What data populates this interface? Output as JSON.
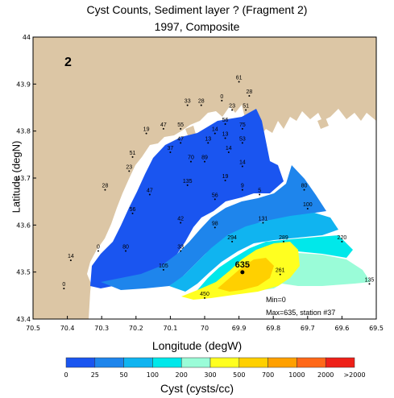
{
  "title_line1": "Cyst Counts, Sediment layer ?  (Fragment 2)",
  "title_line2": "1997, Composite",
  "panel_label": "2",
  "xlabel": "Longitude (degW)",
  "ylabel": "Latitude (degN)",
  "colorbar_label": "Cyst (cysts/cc)",
  "x_ticks": [
    "70.5",
    "70.4",
    "70.3",
    "70.2",
    "70.1",
    "70",
    "69.9",
    "69.8",
    "69.7",
    "69.6",
    "69.5"
  ],
  "y_ticks": [
    "44",
    "43.9",
    "43.8",
    "43.7",
    "43.6",
    "43.5",
    "43.4"
  ],
  "colorbar": {
    "ticks": [
      "0",
      "25",
      "50",
      "100",
      "200",
      "300",
      "500",
      "700",
      "1000",
      "2000",
      ">2000"
    ],
    "colors": [
      "#1a55f0",
      "#1e85ec",
      "#10b4f0",
      "#00e8ea",
      "#9afcd8",
      "#ffff20",
      "#ffd000",
      "#ffa000",
      "#ff6818",
      "#ee2018",
      "#c0002a"
    ]
  },
  "annotations": {
    "min": "Min=0",
    "max": "Max=635, station #37"
  },
  "colors": {
    "land": "#dcc6a5",
    "water": "#ffffff"
  },
  "stations": [
    {
      "lon": 69.9,
      "lat": 43.91,
      "value": "61"
    },
    {
      "lon": 69.87,
      "lat": 43.88,
      "value": "28"
    },
    {
      "lon": 69.95,
      "lat": 43.87,
      "value": "0"
    },
    {
      "lon": 70.05,
      "lat": 43.86,
      "value": "33"
    },
    {
      "lon": 70.01,
      "lat": 43.86,
      "value": "28"
    },
    {
      "lon": 69.92,
      "lat": 43.85,
      "value": "23"
    },
    {
      "lon": 69.88,
      "lat": 43.85,
      "value": "51"
    },
    {
      "lon": 69.94,
      "lat": 43.82,
      "value": "56"
    },
    {
      "lon": 69.89,
      "lat": 43.81,
      "value": "75"
    },
    {
      "lon": 70.07,
      "lat": 43.81,
      "value": "55"
    },
    {
      "lon": 70.12,
      "lat": 43.81,
      "value": "47"
    },
    {
      "lon": 70.17,
      "lat": 43.8,
      "value": "19"
    },
    {
      "lon": 69.97,
      "lat": 43.8,
      "value": "14"
    },
    {
      "lon": 69.94,
      "lat": 43.79,
      "value": "13"
    },
    {
      "lon": 70.07,
      "lat": 43.78,
      "value": "47"
    },
    {
      "lon": 69.99,
      "lat": 43.78,
      "value": "13"
    },
    {
      "lon": 69.89,
      "lat": 43.78,
      "value": "53"
    },
    {
      "lon": 70.1,
      "lat": 43.76,
      "value": "37"
    },
    {
      "lon": 69.93,
      "lat": 43.76,
      "value": "14"
    },
    {
      "lon": 70.21,
      "lat": 43.75,
      "value": "51"
    },
    {
      "lon": 70.04,
      "lat": 43.74,
      "value": "70"
    },
    {
      "lon": 70.0,
      "lat": 43.74,
      "value": "89"
    },
    {
      "lon": 69.89,
      "lat": 43.73,
      "value": "14"
    },
    {
      "lon": 70.22,
      "lat": 43.72,
      "value": "23"
    },
    {
      "lon": 69.94,
      "lat": 43.7,
      "value": "19"
    },
    {
      "lon": 70.05,
      "lat": 43.69,
      "value": "135"
    },
    {
      "lon": 70.29,
      "lat": 43.68,
      "value": "28"
    },
    {
      "lon": 69.89,
      "lat": 43.68,
      "value": "9"
    },
    {
      "lon": 69.84,
      "lat": 43.67,
      "value": "5"
    },
    {
      "lon": 69.71,
      "lat": 43.68,
      "value": "80"
    },
    {
      "lon": 70.16,
      "lat": 43.67,
      "value": "47"
    },
    {
      "lon": 69.97,
      "lat": 43.66,
      "value": "56"
    },
    {
      "lon": 69.7,
      "lat": 43.64,
      "value": "100"
    },
    {
      "lon": 70.21,
      "lat": 43.63,
      "value": "56"
    },
    {
      "lon": 70.07,
      "lat": 43.61,
      "value": "42"
    },
    {
      "lon": 69.97,
      "lat": 43.6,
      "value": "98"
    },
    {
      "lon": 69.83,
      "lat": 43.61,
      "value": "131"
    },
    {
      "lon": 69.92,
      "lat": 43.57,
      "value": "294"
    },
    {
      "lon": 69.77,
      "lat": 43.57,
      "value": "289"
    },
    {
      "lon": 69.6,
      "lat": 43.57,
      "value": "220"
    },
    {
      "lon": 70.31,
      "lat": 43.55,
      "value": "0"
    },
    {
      "lon": 70.23,
      "lat": 43.55,
      "value": "80"
    },
    {
      "lon": 70.07,
      "lat": 43.55,
      "value": "33"
    },
    {
      "lon": 70.39,
      "lat": 43.53,
      "value": "14"
    },
    {
      "lon": 69.89,
      "lat": 43.51,
      "value": "635"
    },
    {
      "lon": 69.78,
      "lat": 43.5,
      "value": "261"
    },
    {
      "lon": 70.12,
      "lat": 43.51,
      "value": "105"
    },
    {
      "lon": 69.52,
      "lat": 43.48,
      "value": "135"
    },
    {
      "lon": 70.41,
      "lat": 43.47,
      "value": "0"
    },
    {
      "lon": 70.0,
      "lat": 43.45,
      "value": "450"
    }
  ]
}
